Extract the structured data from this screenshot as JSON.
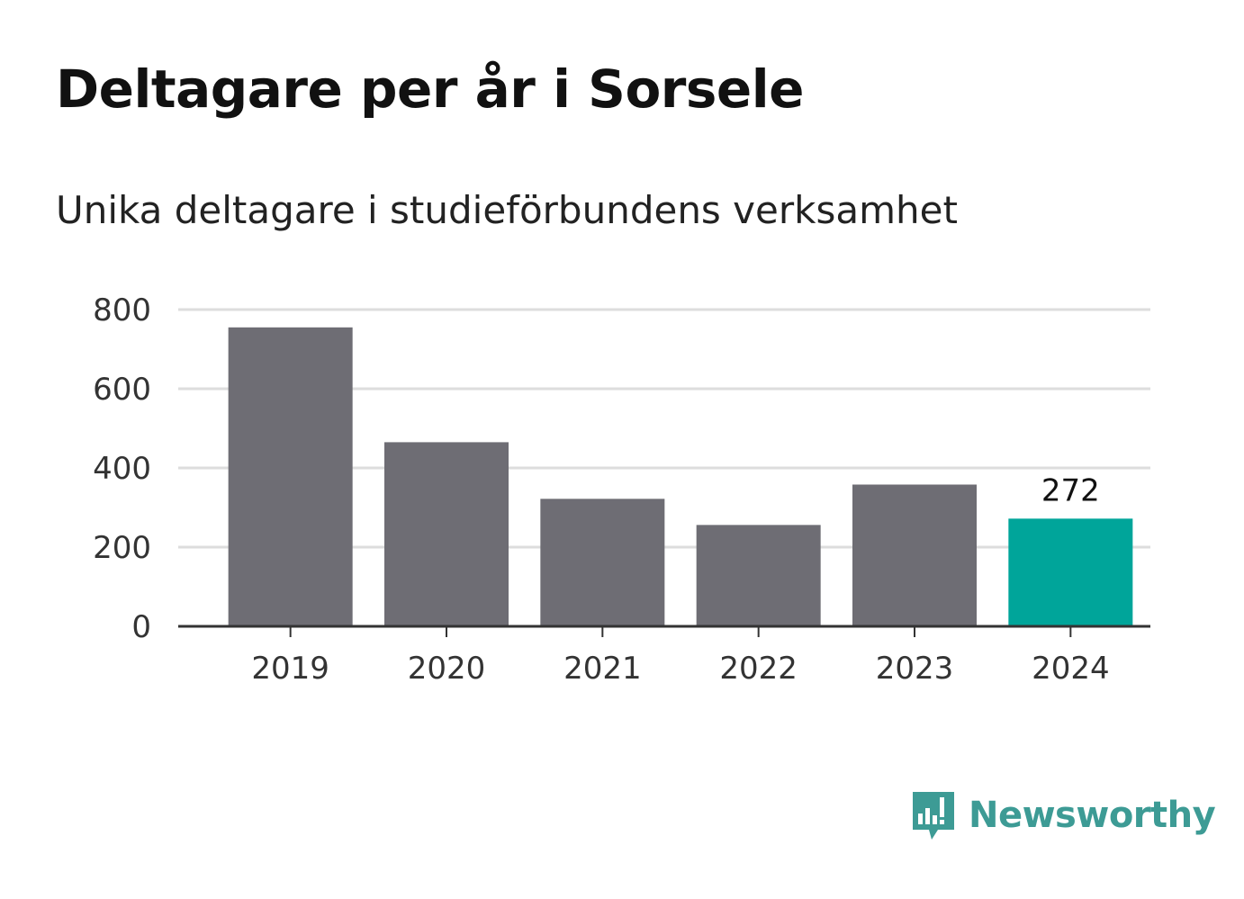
{
  "chart_data": {
    "type": "bar",
    "title": "Deltagare per år i Sorsele",
    "subtitle": "Unika deltagare i studieförbundens verksamhet",
    "categories": [
      "2019",
      "2020",
      "2021",
      "2022",
      "2023",
      "2024"
    ],
    "values": [
      755,
      465,
      322,
      256,
      358,
      272
    ],
    "value_labels": [
      null,
      null,
      null,
      null,
      null,
      "272"
    ],
    "ylim": [
      0,
      800
    ],
    "yticks": [
      0,
      200,
      400,
      600,
      800
    ],
    "grid": true,
    "colors": {
      "bar": "#6e6d74",
      "highlight": "#00a59a",
      "grid": "#dddddd",
      "axis": "#333333"
    },
    "highlight_index": 5
  },
  "brand": {
    "name": "Newsworthy",
    "icon": "newsworthy-logo-icon"
  }
}
